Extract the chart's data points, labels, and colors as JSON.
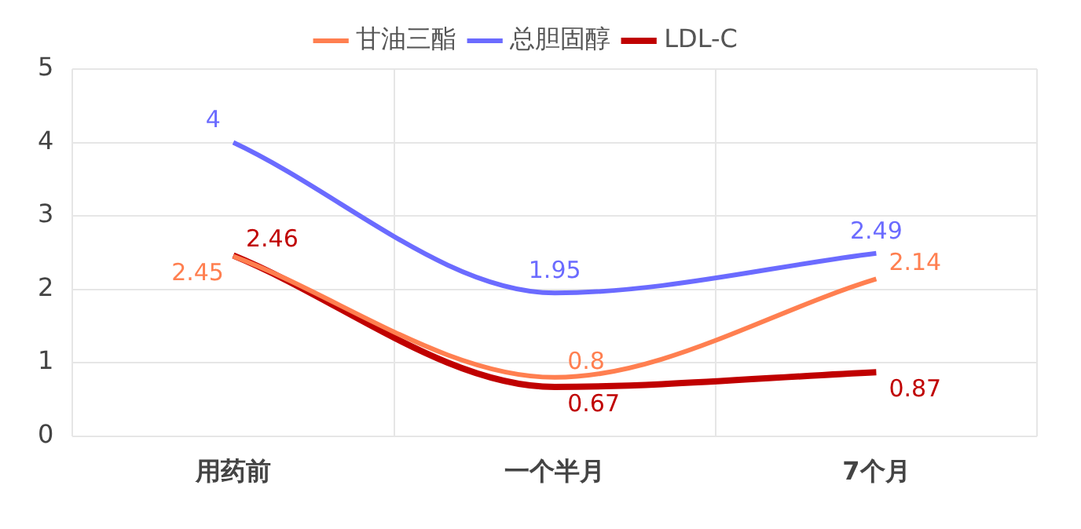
{
  "chart_data": {
    "type": "line",
    "categories": [
      "用药前",
      "一个半月",
      "7个月"
    ],
    "series": [
      {
        "name": "甘油三酯",
        "color": "#ff7f50",
        "values": [
          2.45,
          0.8,
          2.14
        ]
      },
      {
        "name": "总胆固醇",
        "color": "#6b6bff",
        "values": [
          4,
          1.95,
          2.49
        ]
      },
      {
        "name": "LDL-C",
        "color": "#c00000",
        "values": [
          2.46,
          0.67,
          0.87
        ]
      }
    ],
    "ylim": [
      0,
      5
    ],
    "yticks": [
      0,
      1,
      2,
      3,
      4,
      5
    ],
    "grid": true,
    "legend": "top",
    "marker": "none",
    "line_style": "solid",
    "data_labels": true
  }
}
